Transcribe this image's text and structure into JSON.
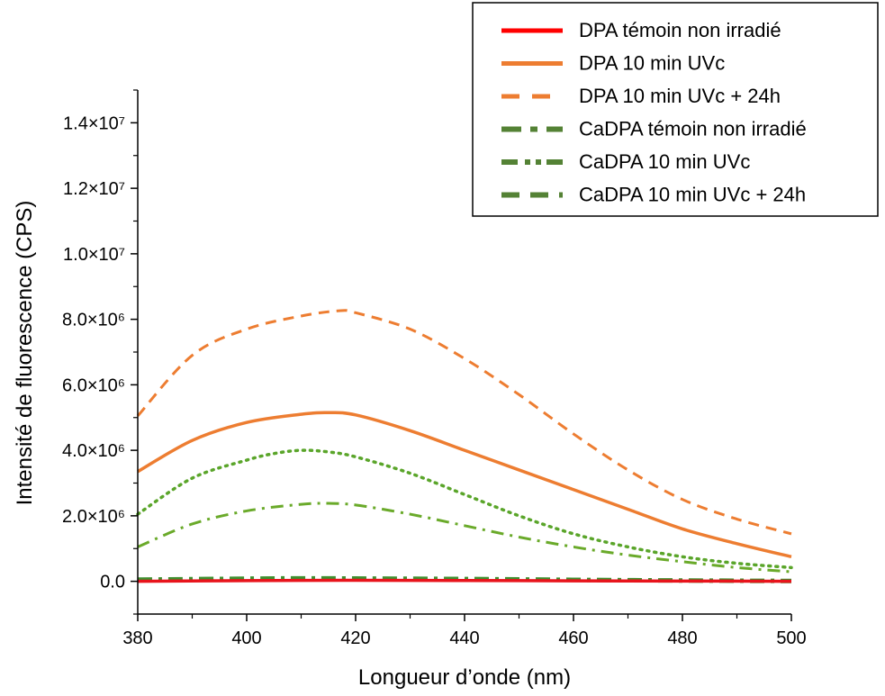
{
  "chart_data": {
    "type": "line",
    "title": "",
    "xlabel": "Longueur d’onde (nm)",
    "ylabel": "Intensité de fluorescence (CPS)",
    "xlim": [
      380,
      500
    ],
    "ylim": [
      -1000000,
      15000000
    ],
    "x_ticks": [
      380,
      400,
      420,
      440,
      460,
      480,
      500
    ],
    "y_ticks": [
      {
        "value": 0,
        "label": "0.0"
      },
      {
        "value": 2000000,
        "label": "2.0×10⁶"
      },
      {
        "value": 4000000,
        "label": "4.0×10⁶"
      },
      {
        "value": 6000000,
        "label": "6.0×10⁶"
      },
      {
        "value": 8000000,
        "label": "8.0×10⁶"
      },
      {
        "value": 10000000,
        "label": "1.0×10⁷"
      },
      {
        "value": 12000000,
        "label": "1.2×10⁷"
      },
      {
        "value": 14000000,
        "label": "1.4×10⁷"
      }
    ],
    "legend_position": "top-right",
    "series": [
      {
        "name": "DPA témoin non irradié",
        "color": "#e8141c",
        "style": "solid",
        "x": [
          380,
          400,
          420,
          440,
          460,
          480,
          500
        ],
        "y": [
          0,
          20000,
          30000,
          25000,
          15000,
          8000,
          0
        ]
      },
      {
        "name": "DPA 10 min UVc",
        "color": "#ed7d31",
        "style": "solid",
        "x": [
          380,
          390,
          400,
          410,
          415,
          420,
          430,
          440,
          450,
          460,
          470,
          480,
          490,
          500
        ],
        "y": [
          3350000,
          4300000,
          4850000,
          5100000,
          5150000,
          5080000,
          4600000,
          4000000,
          3400000,
          2800000,
          2200000,
          1600000,
          1150000,
          750000
        ]
      },
      {
        "name": "DPA 10 min UVc + 24h",
        "color": "#ed7d31",
        "style": "dashed",
        "x": [
          380,
          390,
          400,
          410,
          417,
          420,
          430,
          440,
          450,
          460,
          470,
          480,
          490,
          500
        ],
        "y": [
          5050000,
          6900000,
          7700000,
          8100000,
          8260000,
          8200000,
          7700000,
          6800000,
          5700000,
          4500000,
          3400000,
          2500000,
          1900000,
          1450000
        ]
      },
      {
        "name": "CaDPA témoin non irradié",
        "color": "#3f8f2f",
        "style": "dashdot-thick",
        "x": [
          380,
          400,
          410,
          420,
          440,
          460,
          480,
          500
        ],
        "y": [
          50000,
          80000,
          90000,
          85000,
          70000,
          45000,
          25000,
          10000
        ]
      },
      {
        "name": "CaDPA 10 min UVc",
        "color": "#5aa52a",
        "style": "dotted",
        "x": [
          380,
          390,
          400,
          405,
          410,
          415,
          420,
          430,
          440,
          450,
          460,
          470,
          480,
          490,
          500
        ],
        "y": [
          2050000,
          3150000,
          3700000,
          3900000,
          4000000,
          3950000,
          3800000,
          3300000,
          2650000,
          2000000,
          1450000,
          1050000,
          750000,
          550000,
          420000
        ]
      },
      {
        "name": "CaDPA 10 min UVc + 24h",
        "color": "#6aaa2a",
        "style": "dashdot",
        "x": [
          380,
          390,
          400,
          410,
          415,
          420,
          430,
          440,
          450,
          460,
          470,
          480,
          490,
          500
        ],
        "y": [
          1050000,
          1750000,
          2150000,
          2350000,
          2380000,
          2330000,
          2050000,
          1700000,
          1350000,
          1050000,
          800000,
          600000,
          420000,
          290000
        ]
      }
    ],
    "legend_styles": [
      {
        "color": "#ff0000",
        "dash": "",
        "width": 5
      },
      {
        "color": "#ed7d31",
        "dash": "",
        "width": 5
      },
      {
        "color": "#ed7d31",
        "dash": "20 14",
        "width": 5
      },
      {
        "color": "#548235",
        "dash": "22 10 8 10",
        "width": 6
      },
      {
        "color": "#548235",
        "dash": "18 8 6 6 6 6",
        "width": 6
      },
      {
        "color": "#548235",
        "dash": "20 12",
        "width": 6
      }
    ]
  }
}
